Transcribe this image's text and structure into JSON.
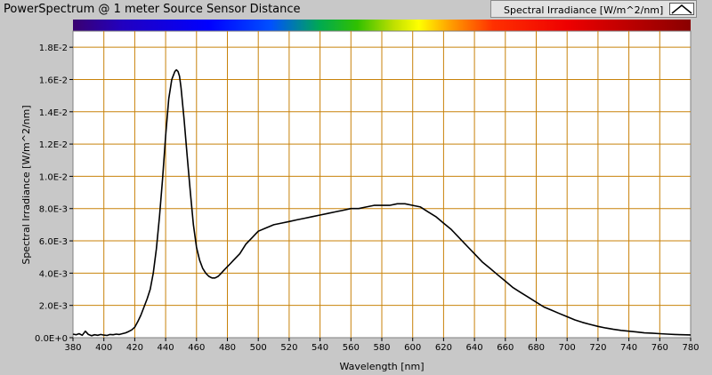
{
  "window": {
    "title": "PowerSpectrum @ 1 meter Source Sensor Distance"
  },
  "legend": {
    "label": "Spectral Irradiance [W/m^2/nm]",
    "icon": "line-plot-swatch-icon"
  },
  "colors": {
    "background": "#c8c8c8",
    "plot_area": "#ffffff",
    "grid": "#c8820a",
    "trace": "#000000"
  },
  "chart_data": {
    "type": "line",
    "title": "PowerSpectrum @ 1 meter Source Sensor Distance",
    "xlabel": "Wavelength [nm]",
    "ylabel": "Spectral Irradiance [W/m^2/nm]",
    "xlim": [
      380,
      780
    ],
    "ylim": [
      0,
      0.019
    ],
    "grid": true,
    "legend_position": "top-right",
    "color_band": "visible spectrum",
    "x_ticks": [
      380,
      400,
      420,
      440,
      460,
      480,
      500,
      520,
      540,
      560,
      580,
      600,
      620,
      640,
      660,
      680,
      700,
      720,
      740,
      760,
      780
    ],
    "x_tick_labels": [
      "380",
      "400",
      "420",
      "440",
      "460",
      "480",
      "500",
      "520",
      "540",
      "560",
      "580",
      "600",
      "620",
      "640",
      "660",
      "680",
      "700",
      "720",
      "740",
      "760",
      "780"
    ],
    "y_ticks": [
      0,
      0.002,
      0.004,
      0.006,
      0.008,
      0.01,
      0.012,
      0.014,
      0.016,
      0.018
    ],
    "y_tick_labels": [
      "0.0E+0",
      "2.0E-3",
      "4.0E-3",
      "6.0E-3",
      "8.0E-3",
      "1.0E-2",
      "1.2E-2",
      "1.4E-2",
      "1.6E-2",
      "1.8E-2"
    ],
    "series": [
      {
        "name": "Spectral Irradiance [W/m^2/nm]",
        "x": [
          380,
          382,
          384,
          386,
          388,
          390,
          392,
          394,
          396,
          398,
          400,
          402,
          404,
          406,
          408,
          410,
          412,
          414,
          416,
          418,
          420,
          422,
          424,
          426,
          428,
          430,
          432,
          434,
          436,
          438,
          440,
          442,
          444,
          446,
          447,
          448,
          449,
          450,
          452,
          454,
          456,
          458,
          460,
          462,
          464,
          466,
          468,
          470,
          472,
          474,
          476,
          478,
          480,
          482,
          484,
          486,
          488,
          490,
          492,
          494,
          496,
          498,
          500,
          505,
          510,
          515,
          520,
          525,
          530,
          535,
          540,
          545,
          550,
          555,
          560,
          565,
          570,
          575,
          580,
          585,
          590,
          595,
          600,
          605,
          610,
          615,
          620,
          625,
          630,
          635,
          640,
          645,
          650,
          655,
          660,
          665,
          670,
          675,
          680,
          685,
          690,
          695,
          700,
          705,
          710,
          715,
          720,
          725,
          730,
          735,
          740,
          745,
          750,
          755,
          760,
          765,
          770,
          775,
          780
        ],
        "values": [
          0.00022,
          0.00018,
          0.00025,
          0.00015,
          0.0004,
          0.0002,
          0.00012,
          0.00018,
          0.00015,
          0.0002,
          0.00016,
          0.00014,
          0.0002,
          0.00018,
          0.00022,
          0.0002,
          0.00025,
          0.0003,
          0.00038,
          0.00048,
          0.00065,
          0.001,
          0.0014,
          0.0019,
          0.0024,
          0.003,
          0.004,
          0.0055,
          0.0075,
          0.0098,
          0.0125,
          0.0148,
          0.016,
          0.0165,
          0.0166,
          0.0165,
          0.0162,
          0.0155,
          0.0135,
          0.0112,
          0.009,
          0.007,
          0.0056,
          0.0048,
          0.0043,
          0.004,
          0.0038,
          0.0037,
          0.0037,
          0.0038,
          0.004,
          0.0042,
          0.0044,
          0.0046,
          0.0048,
          0.005,
          0.0052,
          0.0055,
          0.0058,
          0.006,
          0.0062,
          0.0064,
          0.0066,
          0.0068,
          0.007,
          0.0071,
          0.0072,
          0.0073,
          0.0074,
          0.0075,
          0.0076,
          0.0077,
          0.0078,
          0.0079,
          0.008,
          0.008,
          0.0081,
          0.0082,
          0.0082,
          0.0082,
          0.0083,
          0.0083,
          0.0082,
          0.0081,
          0.0078,
          0.0075,
          0.0071,
          0.0067,
          0.0062,
          0.0057,
          0.0052,
          0.0047,
          0.0043,
          0.0039,
          0.0035,
          0.0031,
          0.0028,
          0.0025,
          0.0022,
          0.0019,
          0.0017,
          0.0015,
          0.0013,
          0.0011,
          0.00095,
          0.00082,
          0.0007,
          0.0006,
          0.00052,
          0.00045,
          0.0004,
          0.00035,
          0.0003,
          0.00028,
          0.00025,
          0.00022,
          0.0002,
          0.00018,
          0.00017
        ]
      }
    ]
  }
}
